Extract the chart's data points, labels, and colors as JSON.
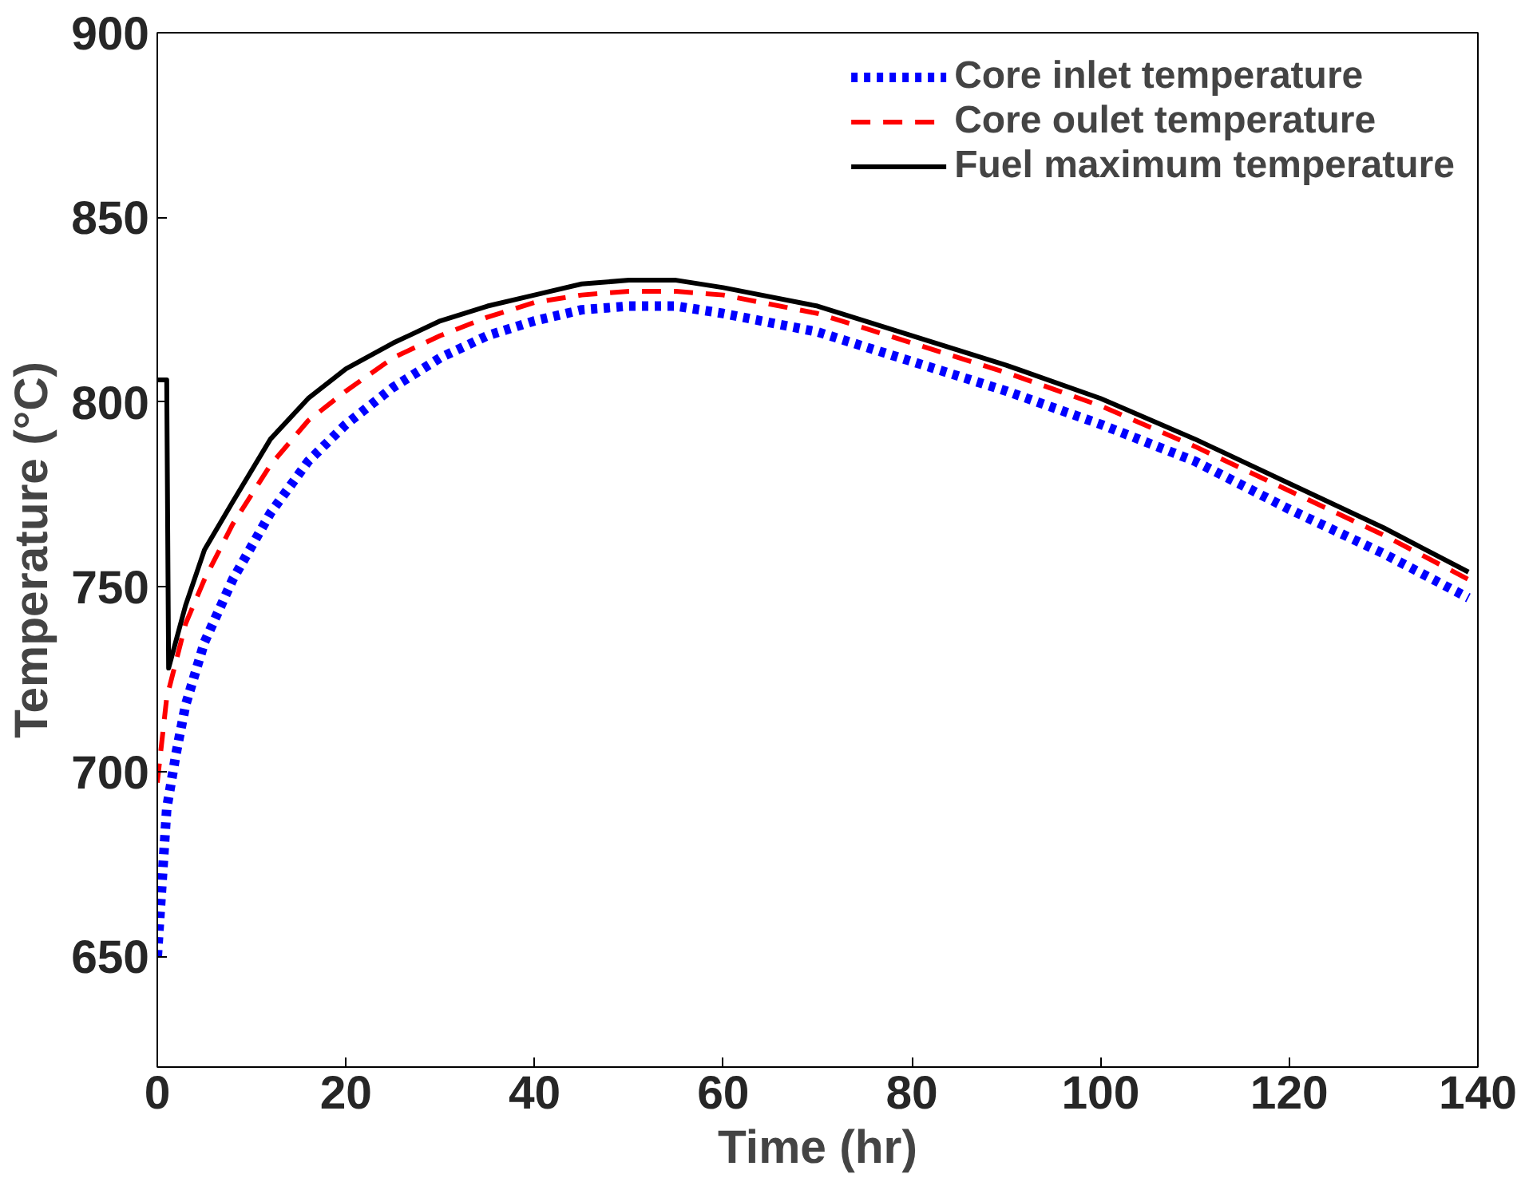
{
  "chart_data": {
    "type": "line",
    "xlabel": "Time (hr)",
    "ylabel": "Temperature (°C)",
    "xlim": [
      0,
      140
    ],
    "ylim": [
      620,
      900
    ],
    "xticks": [
      0,
      20,
      40,
      60,
      80,
      100,
      120,
      140
    ],
    "yticks": [
      650,
      700,
      750,
      800,
      850,
      900
    ],
    "grid": false,
    "legend": "top right",
    "marker": "none",
    "series": [
      {
        "name": "Core inlet temperature",
        "color": "#0000ff",
        "line_style": "dotted",
        "x": [
          0,
          0.5,
          1,
          2,
          3,
          5,
          8,
          12,
          16,
          20,
          25,
          30,
          35,
          40,
          45,
          50,
          55,
          60,
          70,
          80,
          90,
          100,
          110,
          120,
          130,
          139
        ],
        "values": [
          650,
          670,
          690,
          705,
          718,
          735,
          752,
          770,
          784,
          794,
          804,
          812,
          818,
          822,
          825,
          826,
          826,
          824,
          819,
          811,
          803,
          794,
          784,
          771,
          759,
          747
        ]
      },
      {
        "name": "Core oulet temperature",
        "color": "#ff0000",
        "line_style": "dashed",
        "x": [
          0,
          1,
          2,
          3,
          5,
          8,
          12,
          16,
          20,
          25,
          30,
          35,
          40,
          45,
          50,
          55,
          60,
          70,
          80,
          90,
          100,
          110,
          120,
          130,
          139
        ],
        "values": [
          697,
          720,
          730,
          740,
          752,
          767,
          783,
          795,
          803,
          812,
          818,
          823,
          827,
          829,
          830,
          830,
          829,
          824,
          816,
          808,
          799,
          788,
          776,
          764,
          752
        ]
      },
      {
        "name": "Fuel maximum temperature",
        "color": "#000000",
        "line_style": "solid",
        "x": [
          0,
          1,
          1.2,
          3,
          5,
          8,
          12,
          16,
          20,
          25,
          30,
          35,
          40,
          45,
          50,
          55,
          60,
          70,
          80,
          90,
          100,
          110,
          120,
          130,
          139
        ],
        "values": [
          806,
          806,
          728,
          745,
          760,
          773,
          790,
          801,
          809,
          816,
          822,
          826,
          829,
          832,
          833,
          833,
          831,
          826,
          818,
          810,
          801,
          790,
          778,
          766,
          754
        ]
      }
    ]
  }
}
